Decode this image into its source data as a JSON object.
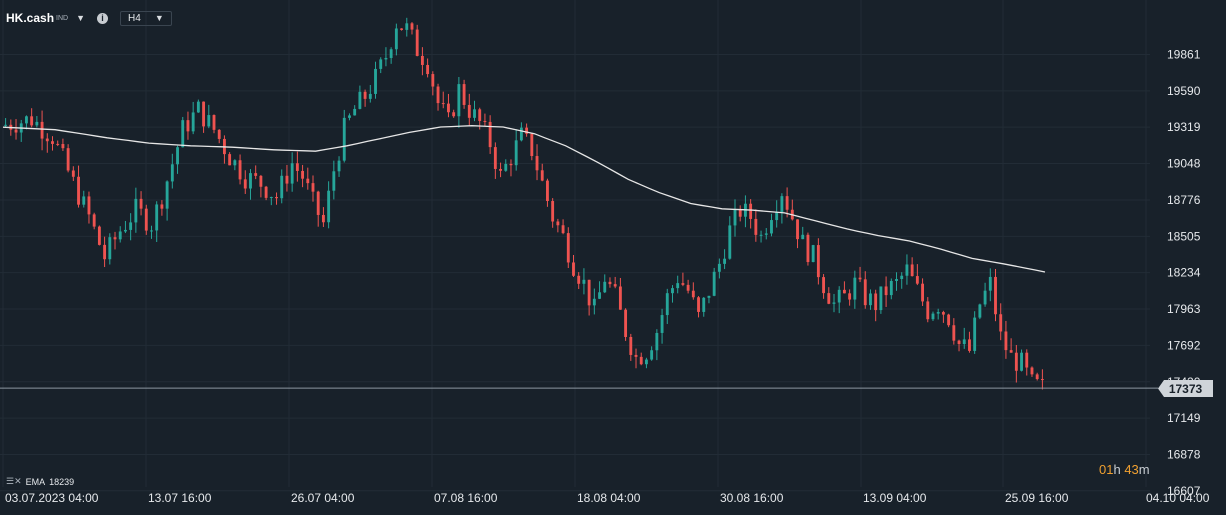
{
  "header": {
    "symbol": "HK.cash",
    "symbol_suffix": "IND",
    "timeframe": "H4"
  },
  "indicator": {
    "name": "EMA",
    "value": "18239"
  },
  "timer": {
    "hours": "01",
    "h_unit": "h",
    "minutes": "43",
    "m_unit": "m"
  },
  "last_price_label": "17373",
  "colors": {
    "background": "#18212a",
    "bull": "#26a69a",
    "bear": "#ef5350",
    "ema": "#e6e6e6",
    "grid": "#222c36",
    "price_line": "#8c97a1"
  },
  "chart_data": {
    "type": "candlestick",
    "symbol": "HK.cash",
    "timeframe": "H4",
    "ylim": [
      16607,
      20132
    ],
    "y_ticks": [
      16607,
      16878,
      17149,
      17420,
      17692,
      17963,
      18234,
      18505,
      18776,
      19048,
      19319,
      19590,
      19861
    ],
    "y_tick_labels": [
      "16607",
      "16878",
      "17149",
      "17420",
      "17692",
      "17963",
      "18234",
      "18505",
      "18776",
      "19048",
      "19319",
      "19590",
      "19861"
    ],
    "x_ticks": [
      "03.07.2023 04:00",
      "13.07 16:00",
      "26.07 04:00",
      "07.08 16:00",
      "18.08 04:00",
      "30.08 16:00",
      "13.09 04:00",
      "25.09 16:00",
      "04.10 04:00"
    ],
    "last_price": 17373,
    "close_path": [
      [
        0,
        19330
      ],
      [
        6,
        19380
      ],
      [
        10,
        19250
      ],
      [
        14,
        18900
      ],
      [
        17,
        18650
      ],
      [
        20,
        18350
      ],
      [
        23,
        18550
      ],
      [
        26,
        18700
      ],
      [
        29,
        18600
      ],
      [
        31,
        18800
      ],
      [
        33,
        19050
      ],
      [
        35,
        19300
      ],
      [
        38,
        19450
      ],
      [
        41,
        19300
      ],
      [
        44,
        19100
      ],
      [
        47,
        18950
      ],
      [
        50,
        18900
      ],
      [
        53,
        18800
      ],
      [
        56,
        19050
      ],
      [
        58,
        18950
      ],
      [
        60,
        18750
      ],
      [
        62,
        18600
      ],
      [
        64,
        19000
      ],
      [
        66,
        19300
      ],
      [
        68,
        19450
      ],
      [
        70,
        19550
      ],
      [
        72,
        19680
      ],
      [
        74,
        19850
      ],
      [
        76,
        20100
      ],
      [
        78,
        20050
      ],
      [
        80,
        19900
      ],
      [
        82,
        19800
      ],
      [
        84,
        19500
      ],
      [
        86,
        19350
      ],
      [
        88,
        19600
      ],
      [
        90,
        19450
      ],
      [
        92,
        19350
      ],
      [
        94,
        19200
      ],
      [
        96,
        18950
      ],
      [
        98,
        19100
      ],
      [
        100,
        19250
      ],
      [
        102,
        19150
      ],
      [
        104,
        18900
      ],
      [
        106,
        18650
      ],
      [
        108,
        18500
      ],
      [
        110,
        18300
      ],
      [
        112,
        18150
      ],
      [
        114,
        17950
      ],
      [
        116,
        18200
      ],
      [
        118,
        18050
      ],
      [
        120,
        17800
      ],
      [
        122,
        17600
      ],
      [
        124,
        17650
      ],
      [
        126,
        17800
      ],
      [
        128,
        18050
      ],
      [
        130,
        18200
      ],
      [
        132,
        18100
      ],
      [
        134,
        17900
      ],
      [
        136,
        18100
      ],
      [
        138,
        18300
      ],
      [
        140,
        18550
      ],
      [
        142,
        18700
      ],
      [
        144,
        18650
      ],
      [
        146,
        18500
      ],
      [
        148,
        18700
      ],
      [
        150,
        18850
      ],
      [
        152,
        18650
      ],
      [
        154,
        18450
      ],
      [
        156,
        18350
      ],
      [
        158,
        18150
      ],
      [
        160,
        18000
      ],
      [
        162,
        18050
      ],
      [
        164,
        18150
      ],
      [
        166,
        18050
      ],
      [
        168,
        18000
      ],
      [
        170,
        18100
      ],
      [
        172,
        18150
      ],
      [
        174,
        18250
      ],
      [
        176,
        18100
      ],
      [
        178,
        17950
      ],
      [
        180,
        18000
      ],
      [
        182,
        17900
      ],
      [
        184,
        17700
      ],
      [
        186,
        17650
      ],
      [
        188,
        18000
      ],
      [
        190,
        18150
      ],
      [
        192,
        17750
      ],
      [
        194,
        17600
      ],
      [
        196,
        17550
      ],
      [
        198,
        17400
      ],
      [
        200,
        17373
      ]
    ],
    "ema_path": [
      [
        0,
        19319
      ],
      [
        10,
        19300
      ],
      [
        20,
        19240
      ],
      [
        28,
        19200
      ],
      [
        36,
        19180
      ],
      [
        44,
        19170
      ],
      [
        52,
        19150
      ],
      [
        60,
        19140
      ],
      [
        66,
        19180
      ],
      [
        72,
        19230
      ],
      [
        78,
        19280
      ],
      [
        84,
        19320
      ],
      [
        90,
        19330
      ],
      [
        96,
        19320
      ],
      [
        102,
        19270
      ],
      [
        108,
        19180
      ],
      [
        114,
        19060
      ],
      [
        120,
        18930
      ],
      [
        126,
        18830
      ],
      [
        132,
        18750
      ],
      [
        138,
        18710
      ],
      [
        144,
        18700
      ],
      [
        150,
        18680
      ],
      [
        156,
        18620
      ],
      [
        162,
        18560
      ],
      [
        168,
        18510
      ],
      [
        174,
        18470
      ],
      [
        180,
        18410
      ],
      [
        186,
        18340
      ],
      [
        192,
        18300
      ],
      [
        200,
        18239
      ]
    ]
  }
}
